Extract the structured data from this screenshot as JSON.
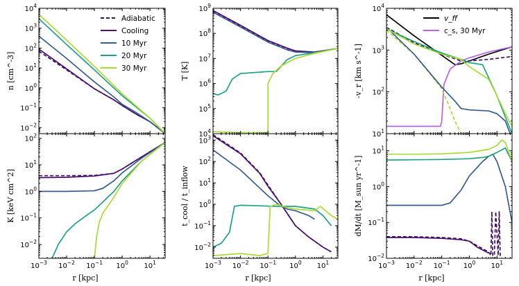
{
  "colors": {
    "adiabatic": "#3e1060",
    "cooling": "#4b0e6e",
    "t10": "#365c8d",
    "t20": "#1fa187",
    "t30": "#a8dc34",
    "vff": "#000000",
    "cs": "#b463e6"
  },
  "legend_left": [
    "Adiabatic",
    "Cooling",
    "10 Myr",
    "20 Myr",
    "30 Myr"
  ],
  "legend_right": [
    "v_ff",
    "c_s, 30 Myr"
  ],
  "xlabel": "r [kpc]",
  "chart_data": [
    {
      "id": "n",
      "type": "line",
      "ylabel": "n [cm^-3]",
      "xlim": [
        0.001,
        35
      ],
      "ylim": [
        0.005,
        10000
      ],
      "log_x": true,
      "log_y": true,
      "xticks": [
        "10^-3",
        "10^-2",
        "10^-1",
        "10^0",
        "10^1"
      ],
      "yticks": [
        "10^-2",
        "10^-1",
        "10^0",
        "10^1",
        "10^2",
        "10^3",
        "10^4"
      ],
      "series": [
        {
          "name": "Adiabatic",
          "style": "dashed",
          "x": [
            0.001,
            0.01,
            0.1,
            0.5,
            1,
            3,
            10,
            35
          ],
          "y": [
            70,
            8,
            0.9,
            0.25,
            0.13,
            0.05,
            0.02,
            0.005
          ]
        },
        {
          "name": "Cooling",
          "style": "solid",
          "x": [
            0.001,
            0.01,
            0.1,
            0.5,
            1,
            3,
            10,
            35
          ],
          "y": [
            90,
            9,
            0.9,
            0.25,
            0.13,
            0.05,
            0.02,
            0.005
          ]
        },
        {
          "name": "10 Myr",
          "style": "solid",
          "x": [
            0.001,
            0.01,
            0.1,
            0.5,
            1,
            3,
            10,
            35
          ],
          "y": [
            400,
            30,
            2,
            0.35,
            0.15,
            0.06,
            0.02,
            0.005
          ]
        },
        {
          "name": "20 Myr",
          "style": "solid",
          "x": [
            0.001,
            0.01,
            0.1,
            1,
            10,
            35
          ],
          "y": [
            3000,
            150,
            8,
            0.4,
            0.03,
            0.005
          ]
        },
        {
          "name": "30 Myr",
          "style": "solid",
          "x": [
            0.001,
            0.01,
            0.1,
            1,
            10,
            35
          ],
          "y": [
            5000,
            250,
            12,
            0.5,
            0.03,
            0.005
          ]
        }
      ]
    },
    {
      "id": "T",
      "type": "line",
      "ylabel": "T [K]",
      "xlim": [
        0.001,
        35
      ],
      "ylim": [
        10000,
        1000000000
      ],
      "log_x": true,
      "log_y": true,
      "xticks": [
        "10^-3",
        "10^-2",
        "10^-1",
        "10^0",
        "10^1"
      ],
      "yticks": [
        "10^4",
        "10^5",
        "10^6",
        "10^7",
        "10^8",
        "10^9"
      ],
      "series": [
        {
          "name": "Adiabatic",
          "style": "dashed",
          "x": [
            0.001,
            0.01,
            0.1,
            0.5,
            1,
            5,
            35
          ],
          "y": [
            800000000,
            200000000,
            50000000,
            25000000,
            20000000,
            18000000,
            25000000
          ]
        },
        {
          "name": "Cooling",
          "style": "solid",
          "x": [
            0.001,
            0.01,
            0.1,
            0.5,
            1,
            5,
            35
          ],
          "y": [
            820000000,
            210000000,
            52000000,
            26000000,
            20000000,
            18000000,
            25000000
          ]
        },
        {
          "name": "10 Myr",
          "style": "solid",
          "x": [
            0.001,
            0.01,
            0.1,
            0.5,
            1,
            5,
            35
          ],
          "y": [
            700000000,
            180000000,
            45000000,
            22000000,
            18000000,
            17000000,
            25000000
          ]
        },
        {
          "name": "20 Myr",
          "style": "solid",
          "x": [
            0.001,
            0.0015,
            0.002,
            0.003,
            0.005,
            0.01,
            0.1,
            0.2,
            0.5,
            1,
            5,
            35
          ],
          "y": [
            400000,
            350000,
            400000,
            500000,
            1500000,
            2500000,
            3000000,
            3000000,
            9000000,
            13000000,
            17000000,
            25000000
          ]
        },
        {
          "name": "30 Myr",
          "style": "solid",
          "x": [
            0.001,
            0.01,
            0.05,
            0.1,
            0.1001,
            0.15,
            0.3,
            1,
            5,
            35
          ],
          "y": [
            12000,
            11000,
            11000,
            11000,
            1000000,
            2500000,
            5000000,
            10000000,
            16000000,
            25000000
          ]
        }
      ]
    },
    {
      "id": "vr",
      "type": "line",
      "ylabel": "-v_r [km s^-1]",
      "xlim": [
        0.001,
        35
      ],
      "ylim": [
        10,
        10000
      ],
      "log_x": true,
      "log_y": true,
      "xticks": [
        "10^-3",
        "10^-2",
        "10^-1",
        "10^0",
        "10^1"
      ],
      "yticks": [
        "10^1",
        "10^2",
        "10^3",
        "10^4"
      ],
      "series": [
        {
          "name": "v_ff",
          "style": "solid",
          "x": [
            0.001,
            0.01,
            0.1,
            0.3,
            0.5,
            1,
            5,
            35
          ],
          "y": [
            7000,
            2200,
            750,
            450,
            470,
            550,
            800,
            1200
          ]
        },
        {
          "name": "c_s, 30 Myr",
          "style": "solid",
          "x": [
            0.001,
            0.01,
            0.09,
            0.1,
            0.12,
            0.2,
            0.5,
            1,
            5,
            35
          ],
          "y": [
            15,
            15,
            15,
            20,
            150,
            350,
            550,
            650,
            900,
            1200
          ]
        },
        {
          "name": "Adiabatic (c_s)",
          "style": "dashed",
          "x": [
            0.001,
            0.01,
            0.1,
            0.5,
            1,
            5,
            35
          ],
          "y": [
            3500,
            1500,
            800,
            550,
            550,
            600,
            700
          ]
        },
        {
          "name": "30 Myr (dashed)",
          "style": "dashed",
          "x": [
            0.001,
            0.01,
            0.1,
            0.2,
            0.3,
            0.5
          ],
          "y": [
            3000,
            800,
            120,
            40,
            20,
            10
          ]
        },
        {
          "name": "10 Myr",
          "style": "solid",
          "x": [
            0.001,
            0.01,
            0.1,
            0.3,
            0.5,
            1,
            5,
            10,
            20,
            30
          ],
          "y": [
            3500,
            800,
            130,
            60,
            40,
            37,
            35,
            30,
            20,
            10
          ]
        },
        {
          "name": "20 Myr",
          "style": "solid",
          "x": [
            0.001,
            0.01,
            0.1,
            0.5,
            1,
            3,
            10,
            20,
            35
          ],
          "y": [
            3200,
            1600,
            850,
            600,
            500,
            450,
            80,
            25,
            10
          ]
        },
        {
          "name": "30 Myr",
          "style": "solid",
          "x": [
            0.001,
            0.01,
            0.1,
            0.5,
            1,
            5,
            10,
            20,
            35
          ],
          "y": [
            3200,
            1400,
            800,
            600,
            400,
            200,
            80,
            30,
            15
          ]
        }
      ]
    },
    {
      "id": "K",
      "type": "line",
      "ylabel": "K [keV cm^2]",
      "xlim": [
        0.001,
        35
      ],
      "ylim": [
        0.003,
        150
      ],
      "log_x": true,
      "log_y": true,
      "xticks": [
        "10^-3",
        "10^-2",
        "10^-1",
        "10^0",
        "10^1"
      ],
      "yticks": [
        "10^-2",
        "10^-1",
        "10^0",
        "10^1",
        "10^2"
      ],
      "series": [
        {
          "name": "Adiabatic",
          "style": "dashed",
          "x": [
            0.001,
            0.01,
            0.1,
            0.5,
            1,
            5,
            35
          ],
          "y": [
            3.9,
            3.9,
            4,
            4.8,
            7,
            20,
            70
          ]
        },
        {
          "name": "Cooling",
          "style": "solid",
          "x": [
            0.001,
            0.01,
            0.1,
            0.5,
            1,
            5,
            35
          ],
          "y": [
            3.3,
            3.4,
            3.8,
            4.8,
            7,
            20,
            70
          ]
        },
        {
          "name": "10 Myr",
          "style": "solid",
          "x": [
            0.001,
            0.01,
            0.1,
            0.2,
            0.5,
            1,
            5,
            35
          ],
          "y": [
            1,
            1,
            1.05,
            1.3,
            2.5,
            5,
            18,
            70
          ]
        },
        {
          "name": "20 Myr",
          "style": "solid",
          "x": [
            0.003,
            0.005,
            0.01,
            0.02,
            0.05,
            0.1,
            0.2,
            0.5,
            1,
            5,
            35
          ],
          "y": [
            0.003,
            0.01,
            0.03,
            0.06,
            0.12,
            0.2,
            0.4,
            1,
            2.5,
            14,
            70
          ]
        },
        {
          "name": "30 Myr",
          "style": "solid",
          "x": [
            0.1,
            0.12,
            0.15,
            0.2,
            0.5,
            1,
            5,
            35
          ],
          "y": [
            0.003,
            0.02,
            0.07,
            0.15,
            0.6,
            2,
            14,
            70
          ]
        }
      ]
    },
    {
      "id": "tcool",
      "type": "line",
      "ylabel": "t_cool / t_inflow",
      "xlim": [
        0.001,
        35
      ],
      "ylim": [
        0.003,
        2000
      ],
      "log_x": true,
      "log_y": true,
      "xticks": [
        "10^-3",
        "10^-2",
        "10^-1",
        "10^0",
        "10^1"
      ],
      "yticks": [
        "10^-2",
        "10^-1",
        "10^0",
        "10^1",
        "10^2",
        "10^3"
      ],
      "series": [
        {
          "name": "Adiabatic",
          "style": "dashed",
          "x": [
            0.001,
            0.01,
            0.05,
            0.1,
            0.3,
            1,
            3,
            10,
            20
          ],
          "y": [
            1800,
            250,
            30,
            8,
            1,
            0.1,
            0.03,
            0.01,
            0.006
          ]
        },
        {
          "name": "Cooling",
          "style": "solid",
          "x": [
            0.001,
            0.01,
            0.05,
            0.1,
            0.3,
            1,
            3,
            10,
            20
          ],
          "y": [
            1600,
            230,
            28,
            7,
            1,
            0.1,
            0.03,
            0.01,
            0.006
          ]
        },
        {
          "name": "10 Myr",
          "style": "solid",
          "x": [
            0.001,
            0.01,
            0.1,
            0.3,
            0.5,
            1,
            3,
            5
          ],
          "y": [
            350,
            40,
            2.5,
            0.8,
            0.6,
            0.5,
            0.3,
            0.2
          ]
        },
        {
          "name": "20 Myr",
          "style": "solid",
          "x": [
            0.001,
            0.002,
            0.004,
            0.006,
            0.01,
            0.05,
            0.2,
            1,
            5,
            10,
            20
          ],
          "y": [
            0.01,
            0.015,
            0.05,
            0.8,
            0.9,
            0.85,
            0.8,
            0.8,
            0.6,
            0.3,
            0.1
          ]
        },
        {
          "name": "30 Myr",
          "style": "solid",
          "x": [
            0.001,
            0.01,
            0.05,
            0.1,
            0.12,
            0.2,
            0.5,
            1,
            5,
            8,
            20,
            35
          ],
          "y": [
            0.004,
            0.005,
            0.004,
            0.005,
            0.8,
            1,
            0.7,
            0.6,
            0.5,
            0.8,
            0.3,
            0.2
          ]
        }
      ]
    },
    {
      "id": "mdot",
      "type": "line",
      "ylabel": "dM/dt [M_sun yr^-1]",
      "xlim": [
        0.001,
        35
      ],
      "ylim": [
        0.01,
        30
      ],
      "log_x": true,
      "log_y": true,
      "xticks": [
        "10^-3",
        "10^-2",
        "10^-1",
        "10^0",
        "10^1"
      ],
      "yticks": [
        "10^-2",
        "10^-1",
        "10^0",
        "10^1"
      ],
      "series": [
        {
          "name": "Adiabatic",
          "style": "dashed",
          "x": [
            0.001,
            0.01,
            0.1,
            0.5,
            1,
            2,
            5
          ],
          "y": [
            0.04,
            0.04,
            0.038,
            0.035,
            0.03,
            0.022,
            0.015
          ]
        },
        {
          "name": "Cooling",
          "style": "solid",
          "x": [
            0.001,
            0.01,
            0.1,
            0.5,
            1,
            2,
            5
          ],
          "y": [
            0.038,
            0.038,
            0.036,
            0.033,
            0.03,
            0.02,
            0.014
          ]
        },
        {
          "name": "10 Myr",
          "style": "solid",
          "x": [
            0.001,
            0.01,
            0.1,
            0.2,
            0.5,
            1,
            3,
            5,
            7,
            10,
            20,
            35
          ],
          "y": [
            0.3,
            0.3,
            0.3,
            0.35,
            0.8,
            2,
            5,
            7,
            8,
            5,
            1,
            0.1
          ]
        },
        {
          "name": "20 Myr",
          "style": "solid",
          "x": [
            0.001,
            0.01,
            0.1,
            1,
            3,
            5,
            10,
            20,
            35
          ],
          "y": [
            5.5,
            5.6,
            5.7,
            6,
            6.5,
            7,
            9,
            12,
            5
          ]
        },
        {
          "name": "30 Myr",
          "style": "solid",
          "x": [
            0.001,
            0.01,
            0.1,
            1,
            5,
            10,
            15,
            20,
            35
          ],
          "y": [
            8,
            8,
            8.2,
            9,
            11,
            14,
            20,
            17,
            5
          ]
        },
        {
          "name": "Adiabatic (spikes)",
          "style": "dashed",
          "x": [
            5,
            6,
            6.5,
            7,
            8,
            9,
            11,
            12,
            13,
            15
          ],
          "y": [
            0.015,
            0.012,
            0.2,
            0.012,
            0.012,
            0.2,
            0.012,
            0.2,
            0.012,
            0.01
          ]
        }
      ]
    }
  ]
}
